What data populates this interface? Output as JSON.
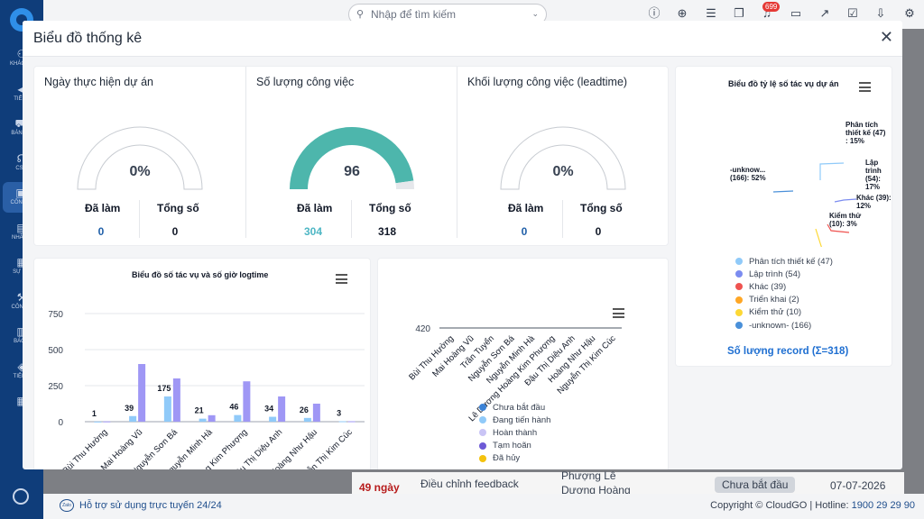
{
  "topbar": {
    "search_placeholder": "Nhập để tìm kiếm",
    "notification_count": "699"
  },
  "sidebar": {
    "items": [
      {
        "label": "KHÁCH...",
        "icon": "users-icon"
      },
      {
        "label": "TIẾP...",
        "icon": "megaphone-icon"
      },
      {
        "label": "BÁN H...",
        "icon": "cart-icon"
      },
      {
        "label": "CS...",
        "icon": "headset-icon"
      },
      {
        "label": "CÔNG...",
        "icon": "briefcase-icon"
      },
      {
        "label": "NHÂN...",
        "icon": "id-card-icon"
      },
      {
        "label": "SỰ K...",
        "icon": "calendar-icon"
      },
      {
        "label": "CÔNG...",
        "icon": "tools-icon"
      },
      {
        "label": "BÁO...",
        "icon": "chart-icon"
      },
      {
        "label": "TIỆN...",
        "icon": "layers-icon"
      },
      {
        "label": "",
        "icon": "grid-icon"
      }
    ]
  },
  "background_row": {
    "days": "49 ngày",
    "task": "Điều chỉnh feedback",
    "person_line1": "Phượng Lê",
    "person_line2": "Dương Hoàng",
    "status": "Chưa bắt đầu",
    "date": "07-07-2026"
  },
  "footer": {
    "help": "Hỗ trợ sử dụng trực tuyến 24/24",
    "help_icon_text": "Zalo",
    "copyright": "Copyright © CloudGO | Hotline: ",
    "hotline": "1900 29 29 90"
  },
  "modal": {
    "title": "Biểu đồ thống kê"
  },
  "stats": [
    {
      "title": "Ngày thực hiện dự án",
      "percent_text": "0%",
      "fill_fraction": 0,
      "done_label": "Đã làm",
      "done": "0",
      "total_label": "Tổng số",
      "total": "0",
      "done_color": "#1f5fa8"
    },
    {
      "title": "Số lượng công việc",
      "percent_text": "96",
      "fill_fraction": 0.956,
      "done_label": "Đã làm",
      "done": "304",
      "total_label": "Tổng số",
      "total": "318",
      "done_color": "#4db6c4"
    },
    {
      "title": "Khối lượng công việc (leadtime)",
      "percent_text": "0%",
      "fill_fraction": 0,
      "done_label": "Đã làm",
      "done": "0",
      "total_label": "Tổng số",
      "total": "0",
      "done_color": "#1f5fa8"
    }
  ],
  "colors": {
    "gauge_fill": "#4db6ac",
    "gauge_track": "#e5e7eb",
    "bar_count": "#90caf9",
    "bar_hours": "#9f97f5",
    "accent": "#1f6fd1"
  },
  "chart_data": [
    {
      "type": "pie",
      "title": "Biểu đồ tỷ lệ số tác vụ dự án",
      "labels": [
        "Phân tích thiết kế",
        "Lập trình",
        "Khác",
        "Triển khai",
        "Kiểm thử",
        "-unknown-"
      ],
      "values": [
        47,
        54,
        39,
        2,
        10,
        166
      ],
      "colors": [
        "#90caf9",
        "#7b8cf0",
        "#ef5350",
        "#ffa726",
        "#fdd835",
        "#4a90d9"
      ],
      "legend": [
        "Phân tích thiết kế (47)",
        "Lập trình (54)",
        "Khác (39)",
        "Triển khai (2)",
        "Kiểm thử (10)",
        "-unknown- (166)"
      ],
      "data_labels": [
        [
          "Phân tích",
          "thiết kế (47)",
          ": 15%"
        ],
        [
          "Lập trình",
          "(54): 17%"
        ],
        [
          "Khác (39):",
          "12%"
        ],
        [
          "Kiểm thử",
          "(10): 3%"
        ],
        [
          "-unknow...",
          "(166): 52%"
        ]
      ],
      "total_label": "Số lượng record (Σ=318)"
    },
    {
      "type": "bar",
      "title": "Biểu đồ số tác vụ và số giờ logtime",
      "categories": [
        "Bùi Thu Hường",
        "Mai Hoàng Vũ",
        "Nguyễn Sơn Bá",
        "Nguyễn Minh Hà",
        "Lê Dương Hoàng Kim Phượng",
        "Đậu Thị Diệu Anh",
        "Hoàng Như Hậu",
        "Nguyễn Thị Kim Cúc"
      ],
      "category_labels": [
        "Bùi Thu Hường",
        "Mai Hoàng Vũ",
        "Nguyễn Sơn Bá",
        "Nguyễn Minh Hà",
        "Hoàng Kim Phượng",
        "Đậu Thị Diệu Anh",
        "Hoàng Như Hậu",
        "Nguyễn Thị Kim Cúc"
      ],
      "series": [
        {
          "values": [
            1,
            39,
            175,
            21,
            46,
            34,
            26,
            3
          ],
          "color": "#90caf9",
          "labeled": true
        },
        {
          "values": [
            2,
            400,
            300,
            45,
            280,
            175,
            125,
            3
          ],
          "color": "#9f97f5",
          "labeled": false
        }
      ],
      "yticks": [
        "750",
        "500",
        "250",
        "0"
      ],
      "ylim": [
        0,
        750
      ]
    },
    {
      "type": "bar",
      "categories": [
        "Bùi Thu Hường",
        "Mai Hoàng Vũ",
        "Trần Tuyển",
        "Nguyễn Sơn Bá",
        "Nguyễn Minh Hà",
        "Lê Dương Hoàng Kim Phượng",
        "Đậu Thị Diệu Anh",
        "Hoàng Như Hậu",
        "Nguyễn Thị Kim Cúc"
      ],
      "yticks": [
        "420"
      ],
      "legend": [
        {
          "label": "Chưa bắt đầu",
          "color": "#3b82d6"
        },
        {
          "label": "Đang tiến hành",
          "color": "#90caf9"
        },
        {
          "label": "Hoàn thành",
          "color": "#c9c4f5"
        },
        {
          "label": "Tạm hoãn",
          "color": "#6d5ad6"
        },
        {
          "label": "Đã hủy",
          "color": "#f4c20d"
        }
      ]
    }
  ]
}
